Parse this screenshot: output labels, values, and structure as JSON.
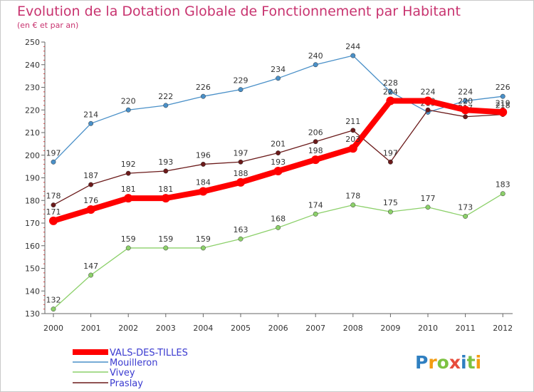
{
  "chart_data": {
    "type": "line",
    "title": "Evolution de la Dotation Globale de Fonctionnement par Habitant",
    "subtitle": "(en € et par an)",
    "xlabel": "",
    "ylabel": "",
    "categories": [
      "2000",
      "2001",
      "2002",
      "2003",
      "2004",
      "2005",
      "2006",
      "2007",
      "2008",
      "2009",
      "2010",
      "2011",
      "2012"
    ],
    "yticks": [
      "130",
      "140",
      "150",
      "160",
      "170",
      "180",
      "190",
      "200",
      "210",
      "220",
      "230",
      "240",
      "250"
    ],
    "ylim": [
      130,
      250
    ],
    "grid": false,
    "legend_position": "bottom-left",
    "series": [
      {
        "name": "VALS-DES-TILLES",
        "color": "#ff0000",
        "values": [
          171,
          176,
          181,
          181,
          184,
          188,
          193,
          198,
          203,
          224,
          224,
          220,
          219
        ],
        "labels": [
          "171",
          "176",
          "181",
          "181",
          "184",
          "188",
          "193",
          "198",
          "203",
          "224",
          "224",
          "220",
          "219"
        ]
      },
      {
        "name": "Mouilleron",
        "color": "#4a90c8",
        "values": [
          197,
          214,
          220,
          222,
          226,
          229,
          234,
          240,
          244,
          228,
          219,
          224,
          226
        ],
        "labels": [
          "197",
          "214",
          "220",
          "222",
          "226",
          "229",
          "234",
          "240",
          "244",
          "228",
          "219",
          "224",
          "226"
        ]
      },
      {
        "name": "Vivey",
        "color": "#8cd06a",
        "values": [
          132,
          147,
          159,
          159,
          159,
          163,
          168,
          174,
          178,
          175,
          177,
          173,
          183
        ],
        "labels": [
          "132",
          "147",
          "159",
          "159",
          "159",
          "163",
          "168",
          "174",
          "178",
          "175",
          "177",
          "173",
          "183"
        ]
      },
      {
        "name": "Praslay",
        "color": "#6b1a1a",
        "values": [
          178,
          187,
          192,
          193,
          196,
          197,
          201,
          206,
          211,
          197,
          220,
          217,
          218
        ],
        "labels": [
          "178",
          "187",
          "192",
          "193",
          "196",
          "197",
          "201",
          "206",
          "211",
          "197",
          "220",
          "217",
          "218"
        ]
      }
    ]
  },
  "logo": {
    "text": "Proxiti",
    "letters": [
      {
        "ch": "P",
        "color": "#2f7fc1"
      },
      {
        "ch": "r",
        "color": "#f39c12"
      },
      {
        "ch": "o",
        "color": "#7cc242"
      },
      {
        "ch": "x",
        "color": "#e74c3c"
      },
      {
        "ch": "i",
        "color": "#2f7fc1"
      },
      {
        "ch": "t",
        "color": "#7cc242"
      },
      {
        "ch": "i",
        "color": "#f39c12"
      }
    ]
  }
}
